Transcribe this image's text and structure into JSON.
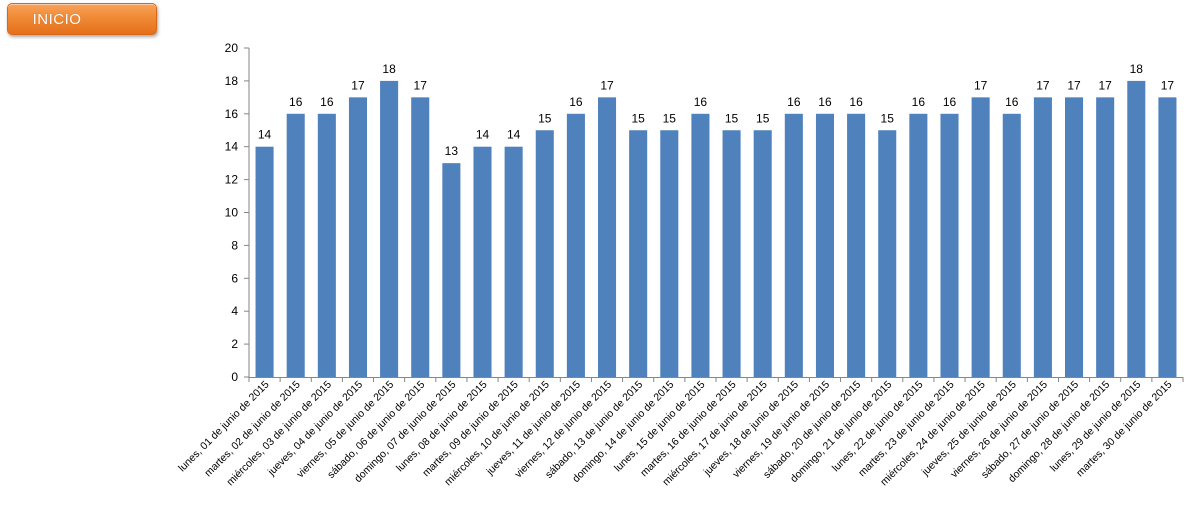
{
  "button": {
    "label": "INICIO"
  },
  "chart_data": {
    "type": "bar",
    "title": "",
    "xlabel": "",
    "ylabel": "",
    "ylim": [
      0,
      20
    ],
    "yticks": [
      0,
      2,
      4,
      6,
      8,
      10,
      12,
      14,
      16,
      18,
      20
    ],
    "grid": false,
    "legend": "none",
    "bar_color": "#4f81bd",
    "categories": [
      "lunes, 01 de junio de 2015",
      "martes, 02 de junio de 2015",
      "miércoles, 03 de junio de 2015",
      "jueves, 04 de junio de 2015",
      "viernes, 05 de junio de 2015",
      "sábado, 06 de junio de 2015",
      "domingo, 07 de junio de 2015",
      "lunes, 08 de junio de 2015",
      "martes, 09 de junio de 2015",
      "miércoles, 10 de junio de 2015",
      "jueves, 11 de junio de 2015",
      "viernes, 12 de junio de 2015",
      "sábado, 13 de junio de 2015",
      "domingo, 14 de junio de 2015",
      "lunes, 15 de junio de 2015",
      "martes, 16 de junio de 2015",
      "miércoles, 17 de junio de 2015",
      "jueves, 18 de junio de 2015",
      "viernes, 19 de junio de 2015",
      "sábado, 20 de junio de 2015",
      "domingo, 21 de junio de 2015",
      "lunes, 22 de junio de 2015",
      "martes, 23 de junio de 2015",
      "miércoles, 24 de junio de 2015",
      "jueves, 25 de junio de 2015",
      "viernes, 26 de junio de 2015",
      "sábado, 27 de junio de 2015",
      "domingo, 28 de junio de 2015",
      "lunes, 29 de junio de 2015",
      "martes, 30 de junio de 2015"
    ],
    "values": [
      14,
      16,
      16,
      17,
      18,
      17,
      13,
      14,
      14,
      15,
      16,
      17,
      15,
      15,
      16,
      15,
      15,
      16,
      16,
      16,
      15,
      16,
      16,
      17,
      16,
      17,
      17,
      17,
      18,
      17
    ]
  }
}
